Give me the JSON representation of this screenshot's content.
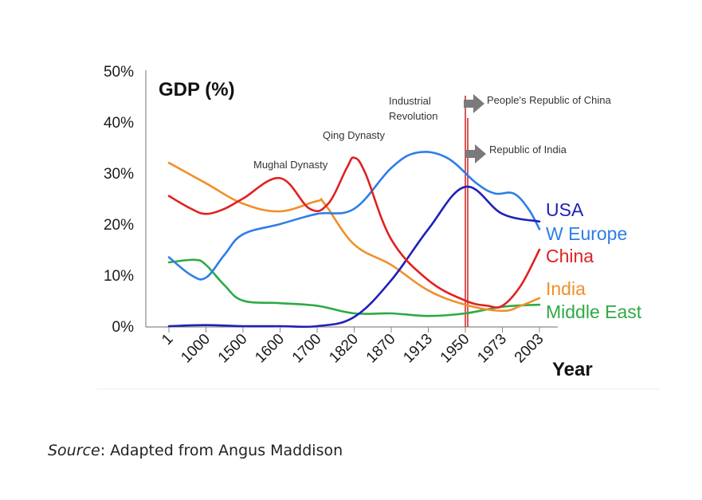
{
  "chart_data": {
    "type": "line",
    "title": "GDP (%)",
    "xlabel": "Year",
    "ylabel": "",
    "categories": [
      "1",
      "1000",
      "1500",
      "1600",
      "1700",
      "1820",
      "1870",
      "1913",
      "1950",
      "1973",
      "2003"
    ],
    "yticks": [
      "0%",
      "10%",
      "20%",
      "30%",
      "40%",
      "50%"
    ],
    "ylim": [
      0,
      50
    ],
    "series": [
      {
        "name": "USA",
        "color": "#2020b8",
        "x": [
          0,
          1,
          2,
          3,
          4,
          5,
          6,
          7,
          8,
          9,
          10
        ],
        "y": [
          0,
          0.2,
          0,
          0,
          0,
          1.8,
          9,
          19,
          27.3,
          22,
          20.5
        ]
      },
      {
        "name": "W Europe",
        "color": "#2e7ee6",
        "x": [
          0,
          0.6,
          1,
          1.5,
          2,
          3,
          4,
          5,
          6,
          6.7,
          7.5,
          8.3,
          8.8,
          9.3,
          9.7,
          10
        ],
        "y": [
          13.5,
          10,
          9.5,
          14,
          18,
          20,
          22,
          23,
          31,
          34,
          33,
          28,
          26,
          26,
          23,
          19
        ]
      },
      {
        "name": "China",
        "color": "#e02020",
        "x": [
          0,
          0.6,
          1,
          1.5,
          2,
          3,
          3.8,
          4.3,
          4.8,
          5,
          5.3,
          6,
          7,
          8,
          8.6,
          9,
          9.5,
          10
        ],
        "y": [
          25.5,
          23,
          22,
          23,
          25,
          29,
          23,
          24,
          31,
          33,
          30,
          17,
          9,
          5,
          4,
          4,
          8,
          15
        ]
      },
      {
        "name": "India",
        "color": "#f0902a",
        "x": [
          0,
          1,
          2,
          3,
          4,
          4.2,
          5,
          6,
          7,
          8,
          9,
          9.5,
          10
        ],
        "y": [
          32,
          28,
          24,
          22.5,
          24.5,
          24,
          16,
          12,
          7,
          4.2,
          3,
          4,
          5.5
        ]
      },
      {
        "name": "Middle East",
        "color": "#2eaa44",
        "x": [
          0,
          0.7,
          1,
          1.5,
          2,
          3,
          4,
          5,
          6,
          7,
          8,
          9,
          10
        ],
        "y": [
          12.5,
          13,
          12,
          8,
          5,
          4.5,
          4,
          2.5,
          2.5,
          2,
          2.5,
          3.8,
          4.2
        ]
      }
    ],
    "annotations": [
      {
        "text": "Mughal Dynasty",
        "category": "1600"
      },
      {
        "text": "Qing Dynasty",
        "category": "1820"
      },
      {
        "text": "Industrial",
        "category": "1950"
      },
      {
        "text": "Revolution",
        "category": "1950"
      },
      {
        "text": "People's Republic of China",
        "category": "1950"
      },
      {
        "text": "Republic of India",
        "category": "1950"
      }
    ],
    "vertical_marker": {
      "category": "1950",
      "color": "#cc2020"
    },
    "grid": false,
    "legend": "right, labels next to line ends"
  },
  "source": {
    "label": "Source",
    "text": ": Adapted from Angus Maddison"
  }
}
